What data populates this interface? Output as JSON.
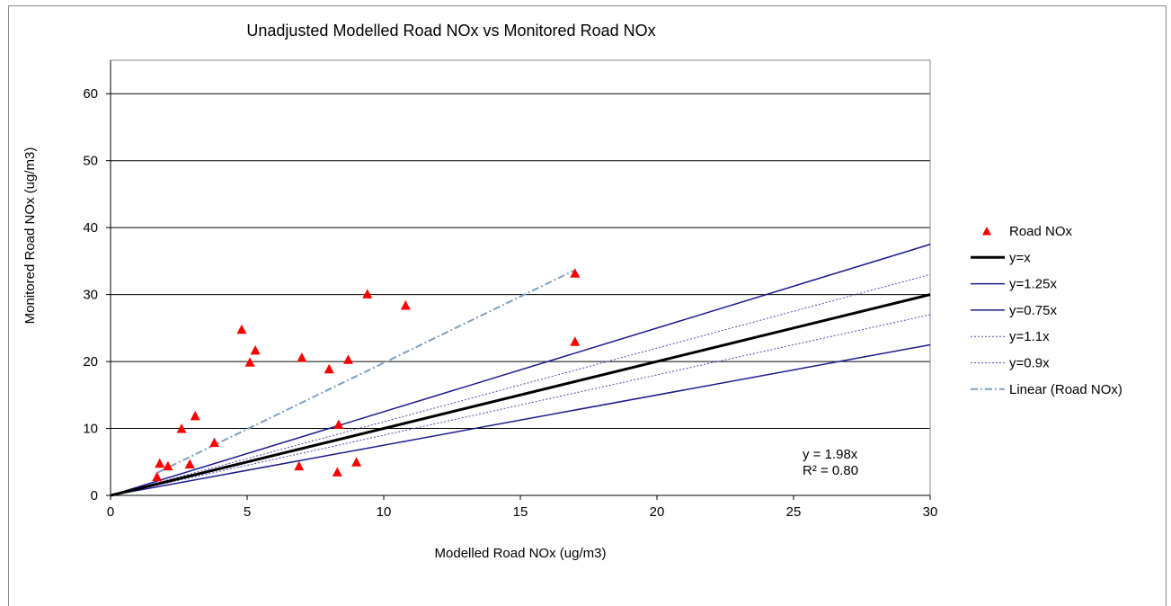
{
  "chart_data": {
    "type": "scatter",
    "title": "Unadjusted Modelled Road NOx vs Monitored Road NOx",
    "xlabel": "Modelled Road NOx (ug/m3)",
    "ylabel": "Monitored Road NOx (ug/m3)",
    "xlim": [
      0,
      30
    ],
    "ylim": [
      0,
      65
    ],
    "xticks": [
      0,
      5,
      10,
      15,
      20,
      25,
      30
    ],
    "yticks": [
      0,
      10,
      20,
      30,
      40,
      50,
      60
    ],
    "grid": "horizontal",
    "legend_position": "right",
    "series": [
      {
        "name": "Road NOx",
        "kind": "scatter",
        "marker": "triangle",
        "color": "#ff0000",
        "points": [
          {
            "x": 1.7,
            "y": 2.8
          },
          {
            "x": 1.8,
            "y": 4.8
          },
          {
            "x": 2.1,
            "y": 4.4
          },
          {
            "x": 2.6,
            "y": 10.0
          },
          {
            "x": 2.9,
            "y": 4.7
          },
          {
            "x": 3.1,
            "y": 11.9
          },
          {
            "x": 3.8,
            "y": 7.9
          },
          {
            "x": 4.8,
            "y": 24.8
          },
          {
            "x": 5.1,
            "y": 19.9
          },
          {
            "x": 5.3,
            "y": 21.7
          },
          {
            "x": 6.9,
            "y": 4.4
          },
          {
            "x": 7.0,
            "y": 20.6
          },
          {
            "x": 8.0,
            "y": 18.9
          },
          {
            "x": 8.3,
            "y": 3.5
          },
          {
            "x": 8.35,
            "y": 10.6
          },
          {
            "x": 8.7,
            "y": 20.3
          },
          {
            "x": 9.0,
            "y": 5.0
          },
          {
            "x": 9.4,
            "y": 30.1
          },
          {
            "x": 10.8,
            "y": 28.4
          },
          {
            "x": 17.0,
            "y": 33.2
          },
          {
            "x": 17.0,
            "y": 23.0
          }
        ]
      },
      {
        "name": "y=x",
        "kind": "line",
        "slope": 1.0,
        "color": "#000000",
        "width": 3,
        "dash": "none",
        "x_range": [
          0,
          30
        ]
      },
      {
        "name": "y=1.25x",
        "kind": "line",
        "slope": 1.25,
        "color": "#1a1a8c",
        "width": 1.5,
        "dash": "none",
        "x_range": [
          0,
          30
        ]
      },
      {
        "name": "y=0.75x",
        "kind": "line",
        "slope": 0.75,
        "color": "#1a1a8c",
        "width": 1.5,
        "dash": "none",
        "x_range": [
          0,
          30
        ]
      },
      {
        "name": "y=1.1x",
        "kind": "line",
        "slope": 1.1,
        "color": "#4a4ab0",
        "width": 1,
        "dash": "2,2",
        "x_range": [
          0,
          30
        ]
      },
      {
        "name": "y=0.9x",
        "kind": "line",
        "slope": 0.9,
        "color": "#4a4ab0",
        "width": 1,
        "dash": "2,2",
        "x_range": [
          0,
          30
        ]
      },
      {
        "name": "Linear (Road NOx)",
        "kind": "line",
        "slope": 1.98,
        "color": "#7f9fbf",
        "width": 2,
        "dash": "8,3,2,3",
        "x_range": [
          1.7,
          17.0
        ]
      }
    ],
    "annotations": [
      {
        "text": "y = 1.98x"
      },
      {
        "text": "R² = 0.80"
      }
    ]
  }
}
